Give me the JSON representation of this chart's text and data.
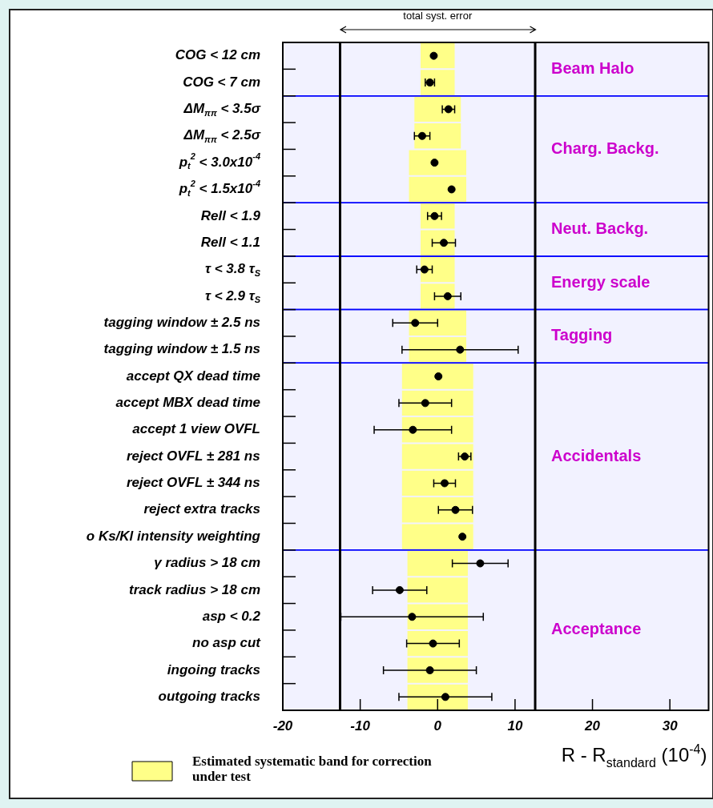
{
  "chart_data": {
    "type": "scatter",
    "orientation": "horizontal",
    "annotations": [
      "total syst. error"
    ],
    "bands": [
      {
        "axis": "y",
        "from": "COG < 12 cm",
        "to": "COG < 7 cm",
        "label": "Beam Halo",
        "color": "#0000ff"
      },
      {
        "axis": "y",
        "from": "ΔM$_{ππ}$ < 3.5σ",
        "to": "p$_{t}$$^{2}$ < 1.5x10$^{-4}$",
        "label": "Charg. Backg.",
        "color": "#0000ff"
      },
      {
        "axis": "y",
        "from": "Rell < 1.9",
        "to": "Rell < 1.1",
        "label": "Neut. Backg.",
        "color": "#0000ff"
      },
      {
        "axis": "y",
        "from": "τ < 3.8 τ$_{S}$",
        "to": "τ < 2.9 τ$_{S}$",
        "label": "Energy scale",
        "color": "#0000ff"
      },
      {
        "axis": "y",
        "from": "tagging window ± 2.5 ns",
        "to": "tagging window ± 1.5 ns",
        "label": "Tagging",
        "color": "#0000ff"
      },
      {
        "axis": "y",
        "from": "accept QX dead time",
        "to": "o Ks/Kl intensity weighting",
        "label": "Accidentals",
        "color": "#0000ff"
      },
      {
        "axis": "y",
        "from": "γ radius > 18 cm",
        "to": "outgoing tracks",
        "label": "Acceptance",
        "color": "#0000ff"
      }
    ],
    "xlabel": "R - R$_{standard}$ (10$^{-4}$)",
    "categories": [
      "COG < 12 cm",
      "COG < 7 cm",
      "ΔM$_{ππ}$ < 3.5σ",
      "ΔM$_{ππ}$ < 2.5σ",
      "p$_{t}$$^{2}$ < 3.0x10$^{-4}$",
      "p$_{t}$$^{2}$ < 1.5x10$^{-4}$",
      "Rell < 1.9",
      "Rell < 1.1",
      "τ < 3.8 τ$_{S}$",
      "τ < 2.9 τ$_{S}$",
      "tagging window ± 2.5 ns",
      "tagging window ± 1.5 ns",
      "accept QX dead time",
      "accept MBX dead time",
      "accept 1 view OVFL",
      "reject OVFL ± 281 ns",
      "reject OVFL ± 344 ns",
      "reject extra tracks",
      "o Ks/Kl intensity weighting",
      "γ radius > 18 cm",
      "track radius > 18 cm",
      "asp < 0.2",
      "no asp cut",
      "ingoing tracks",
      "outgoing tracks"
    ],
    "xlim": [
      -20,
      35
    ],
    "xticks": [
      -20,
      -10,
      0,
      10,
      20,
      30
    ],
    "grid": false,
    "legend": "bottom left",
    "marker": "circle",
    "ref_lines": [
      {
        "axis": "x",
        "value": -12.6,
        "color": "#000000"
      },
      {
        "axis": "x",
        "value": 12.6,
        "color": "#000000"
      }
    ],
    "series": [
      {
        "type": "bar",
        "name": "Estimated systematic band for correction under test",
        "color": "#ffff88",
        "base": [
          -2.2,
          -2.2,
          -3.0,
          -3.0,
          -3.7,
          -3.7,
          -2.2,
          -2.2,
          -2.2,
          -2.2,
          -3.7,
          -3.7,
          -4.6,
          -4.6,
          -4.6,
          -4.6,
          -4.6,
          -4.6,
          -4.6,
          -3.9,
          -3.9,
          -3.9,
          -3.9,
          -3.9,
          -3.9
        ],
        "values": [
          4.4,
          4.4,
          6.0,
          6.0,
          7.4,
          7.4,
          4.4,
          4.4,
          4.4,
          4.4,
          7.4,
          7.4,
          9.2,
          9.2,
          9.2,
          9.2,
          9.2,
          9.2,
          9.2,
          7.8,
          7.8,
          7.8,
          7.8,
          7.8,
          7.8
        ]
      },
      {
        "color": "#000000",
        "values": [
          -0.5,
          -1.0,
          1.4,
          -2.0,
          -0.4,
          1.8,
          -0.4,
          0.8,
          -1.7,
          1.3,
          -2.9,
          2.9,
          0.1,
          -1.6,
          -3.2,
          3.5,
          0.9,
          2.3,
          3.2,
          5.5,
          -4.9,
          -3.3,
          -0.6,
          -1.0,
          1.0
        ],
        "errors": [
          null,
          0.6,
          0.8,
          1.0,
          null,
          null,
          0.9,
          1.5,
          1.0,
          1.7,
          2.9,
          7.5,
          null,
          3.4,
          5.0,
          0.8,
          1.4,
          2.2,
          null,
          3.6,
          3.5,
          9.2,
          3.4,
          6.0,
          6.0
        ]
      }
    ]
  }
}
